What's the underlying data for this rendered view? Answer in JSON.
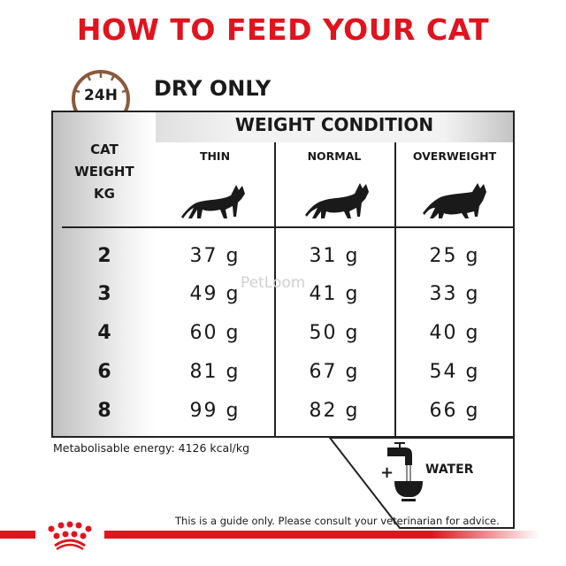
{
  "title": "HOW TO FEED YOUR CAT",
  "clock_label": "24H",
  "subtitle": "DRY ONLY",
  "table": {
    "group_header": "WEIGHT CONDITION",
    "row_header": [
      "CAT",
      "WEIGHT",
      "KG"
    ],
    "columns": [
      "THIN",
      "NORMAL",
      "OVERWEIGHT"
    ],
    "rows": [
      {
        "kg": "2",
        "values": [
          "37 g",
          "31 g",
          "25 g"
        ]
      },
      {
        "kg": "3",
        "values": [
          "49 g",
          "41 g",
          "33 g"
        ]
      },
      {
        "kg": "4",
        "values": [
          "60 g",
          "50 g",
          "40 g"
        ]
      },
      {
        "kg": "6",
        "values": [
          "81 g",
          "67 g",
          "54 g"
        ]
      },
      {
        "kg": "8",
        "values": [
          "99 g",
          "82 g",
          "66 g"
        ]
      }
    ]
  },
  "energy": "Metabolisable energy: 4126 kcal/kg",
  "water": {
    "plus": "+",
    "label": "WATER",
    "icon": "water-tap-bowl-icon"
  },
  "disclaimer": "This is a guide only. Please consult your veterinarian for advice.",
  "watermark": "PetLoom",
  "colors": {
    "brand_red": "#e0141e",
    "clock_brown": "#8a5a3c"
  }
}
